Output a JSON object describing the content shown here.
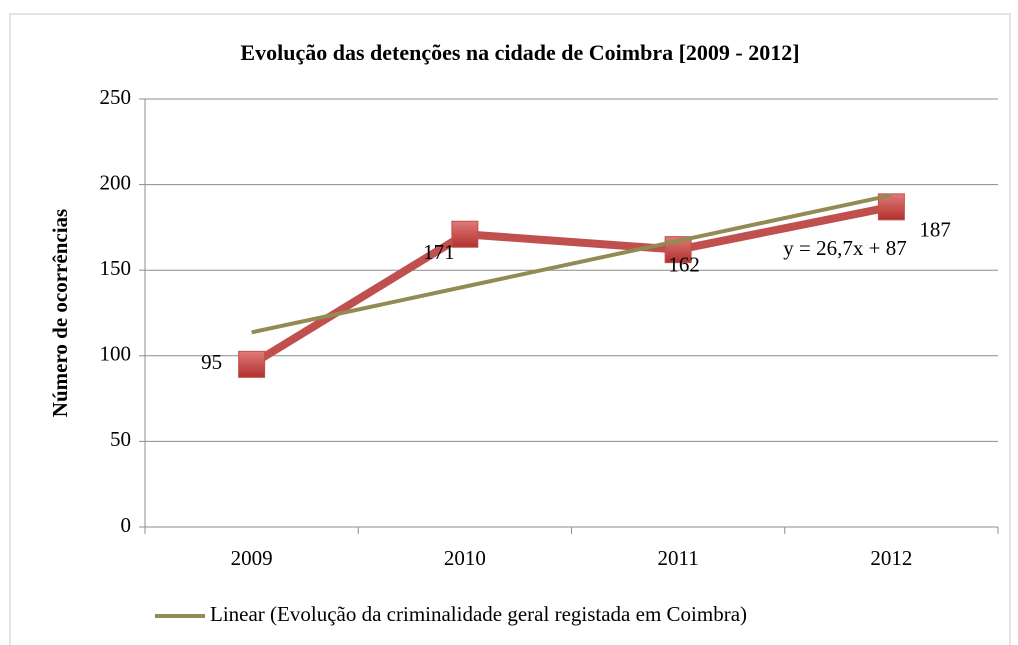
{
  "chart_data": {
    "type": "line",
    "title": "Evolução das detenções na cidade de Coimbra [2009 - 2012]",
    "y_label": "Número de ocorrências",
    "categories": [
      "2009",
      "2010",
      "2011",
      "2012"
    ],
    "series": [
      {
        "color": "#c0504d",
        "values": [
          95,
          171,
          162,
          187
        ]
      },
      {
        "name": "Linear (Evolução da criminalidade geral registada em Coimbra)",
        "color": "#948a54",
        "values": [
          113.7,
          140.4,
          167.1,
          193.8
        ]
      }
    ],
    "annotation": "y = 26,7x + 87",
    "ylim": [
      0,
      250
    ],
    "yticks": [
      0,
      50,
      100,
      150,
      200,
      250
    ],
    "grid": true
  }
}
